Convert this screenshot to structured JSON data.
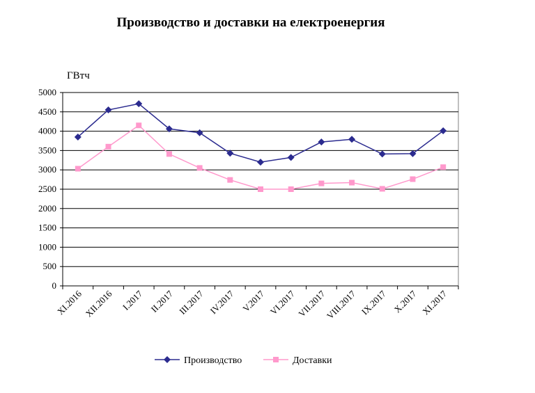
{
  "title": "Производство и доставки на електроенергия",
  "chart_data": {
    "type": "line",
    "title": "Производство и доставки на електроенергия",
    "ylabel": "ГВтч",
    "xlabel": "",
    "categories": [
      "XI.2016",
      "XII.2016",
      "I.2017",
      "II.2017",
      "III.2017",
      "IV.2017",
      "V.2017",
      "VI.2017",
      "VII.2017",
      "VIII.2017",
      "IX.2017",
      "X.2017",
      "XI.2017"
    ],
    "ylim": [
      0,
      5000
    ],
    "yticks": [
      0,
      500,
      1000,
      1500,
      2000,
      2500,
      3000,
      3500,
      4000,
      4500,
      5000
    ],
    "grid": true,
    "legend_position": "bottom",
    "series": [
      {
        "name": "Производство",
        "color": "#2b2b8f",
        "marker": "diamond",
        "values": [
          3850,
          4550,
          4710,
          4060,
          3960,
          3430,
          3200,
          3320,
          3720,
          3790,
          3410,
          3420,
          4010
        ]
      },
      {
        "name": "Доставки",
        "color": "#ff99cc",
        "marker": "square",
        "values": [
          3030,
          3600,
          4150,
          3410,
          3050,
          2740,
          2500,
          2500,
          2650,
          2670,
          2510,
          2760,
          3070
        ]
      }
    ]
  }
}
